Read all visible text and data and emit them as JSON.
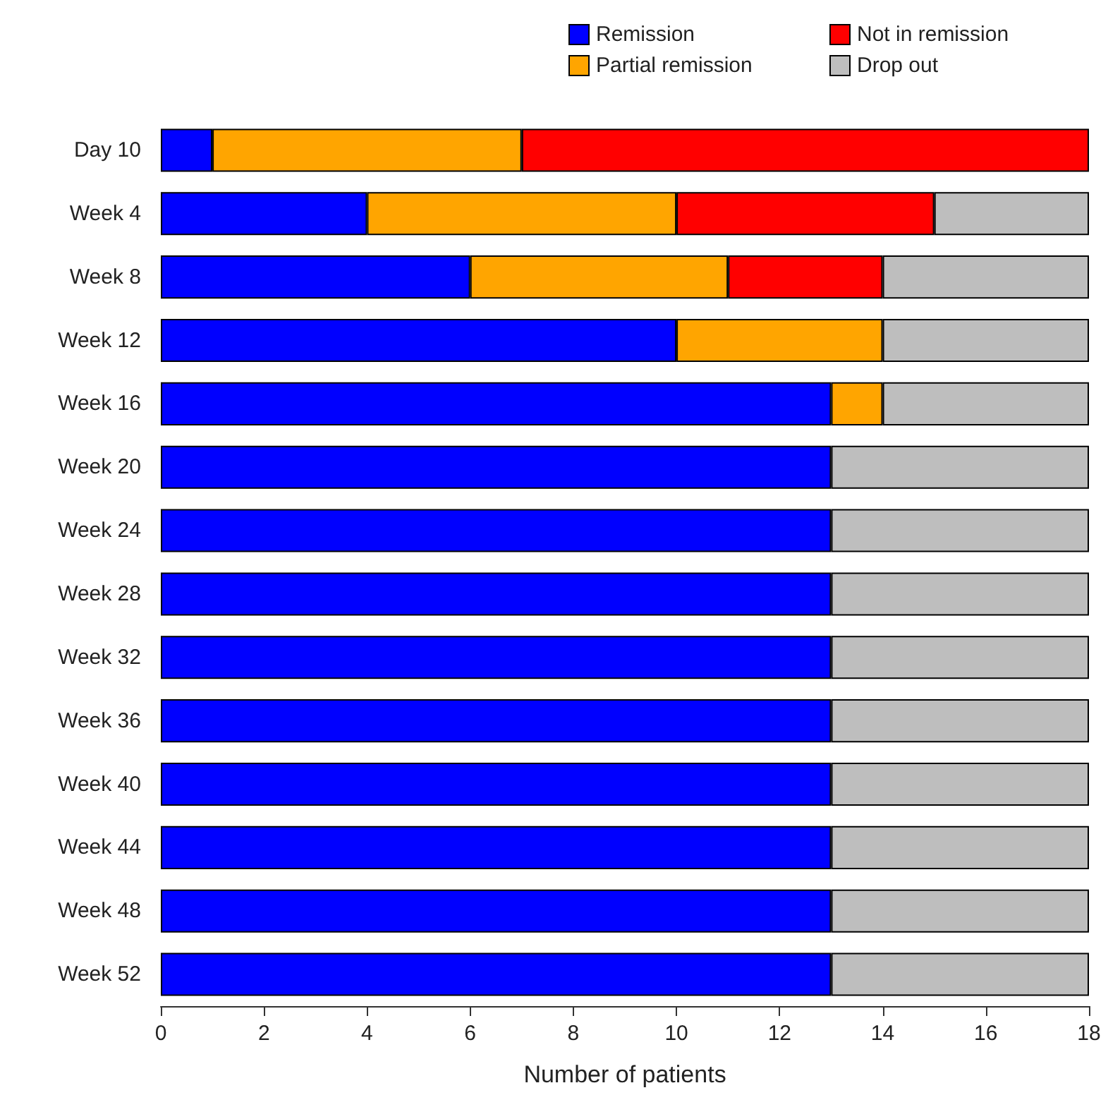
{
  "chart_data": {
    "type": "bar",
    "orientation": "horizontal",
    "stacked": true,
    "xlabel": "Number of patients",
    "categories": [
      "Day 10",
      "Week 4",
      "Week 8",
      "Week 12",
      "Week 16",
      "Week 20",
      "Week 24",
      "Week 28",
      "Week 32",
      "Week 36",
      "Week 40",
      "Week 44",
      "Week 48",
      "Week 52"
    ],
    "series": [
      {
        "name": "Remission",
        "color": "#0000ff",
        "values": [
          1,
          4,
          6,
          10,
          13,
          13,
          13,
          13,
          13,
          13,
          13,
          13,
          13,
          13
        ]
      },
      {
        "name": "Partial remission",
        "color": "#ffa500",
        "values": [
          6,
          6,
          5,
          4,
          1,
          0,
          0,
          0,
          0,
          0,
          0,
          0,
          0,
          0
        ]
      },
      {
        "name": "Not in remission",
        "color": "#ff0000",
        "values": [
          11,
          5,
          3,
          0,
          0,
          0,
          0,
          0,
          0,
          0,
          0,
          0,
          0,
          0
        ]
      },
      {
        "name": "Drop out",
        "color": "#bebebe",
        "values": [
          0,
          3,
          4,
          4,
          4,
          5,
          5,
          5,
          5,
          5,
          5,
          5,
          5,
          5
        ]
      }
    ],
    "xlim": [
      0,
      18
    ],
    "xticks": [
      0,
      2,
      4,
      6,
      8,
      10,
      12,
      14,
      16,
      18
    ],
    "grid": false,
    "legend": "top right"
  }
}
